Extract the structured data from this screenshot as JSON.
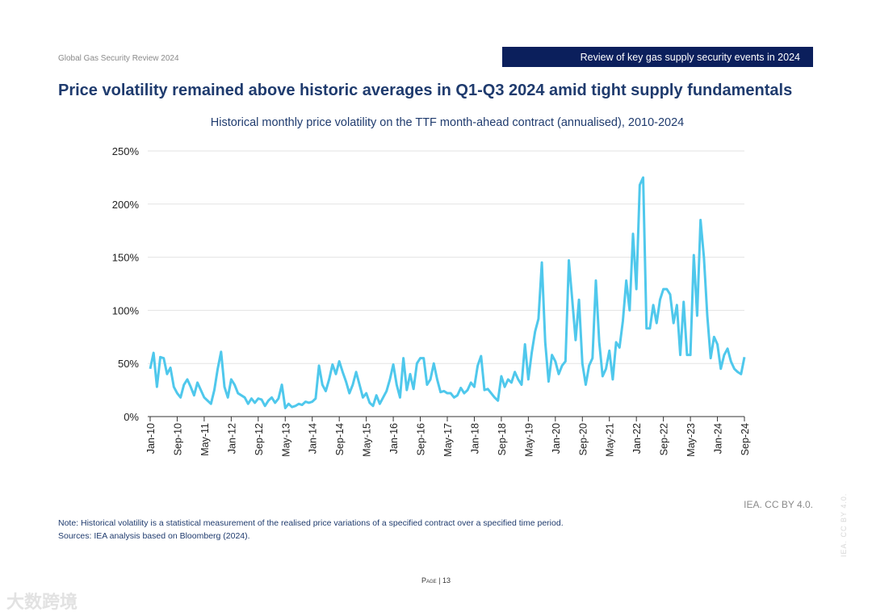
{
  "header": {
    "report": "Global Gas Security Review 2024",
    "section": "Review of key gas supply security events in 2024"
  },
  "title": "Price volatility remained above historic averages in Q1-Q3 2024 amid tight supply fundamentals",
  "credit": "IEA. CC BY 4.0.",
  "note": "Note: Historical volatility is a statistical measurement of the realised price variations of a specified contract over a specified time period.",
  "sources": "Sources: IEA analysis based on Bloomberg (2024).",
  "page": "Page | 13",
  "side_license": "IEA. CC BY 4.0.",
  "watermark": "大数跨境",
  "colors": {
    "line": "#4fc8ec",
    "grid": "#e3e3e3",
    "title": "#1f3b6e",
    "band": "#0b1f5c"
  },
  "chart_data": {
    "type": "line",
    "title": "Historical monthly price volatility on the TTF month-ahead contract (annualised), 2010-2024",
    "xlabel": "",
    "ylabel": "",
    "ylim": [
      0,
      250
    ],
    "yticks": [
      "0%",
      "50%",
      "100%",
      "150%",
      "200%",
      "250%"
    ],
    "ytick_values": [
      0,
      50,
      100,
      150,
      200,
      250
    ],
    "xticks": [
      "Jan-10",
      "Sep-10",
      "May-11",
      "Jan-12",
      "Sep-12",
      "May-13",
      "Jan-14",
      "Sep-14",
      "May-15",
      "Jan-16",
      "Sep-16",
      "May-17",
      "Jan-18",
      "Sep-18",
      "May-19",
      "Jan-20",
      "Sep-20",
      "May-21",
      "Jan-22",
      "Sep-22",
      "May-23",
      "Jan-24",
      "Sep-24"
    ],
    "x_start": "Jan-10",
    "x_end": "Sep-24",
    "frequency": "monthly",
    "grid": true,
    "series": [
      {
        "name": "TTF month-ahead volatility (%)",
        "values": [
          45,
          60,
          28,
          56,
          55,
          40,
          46,
          28,
          22,
          18,
          30,
          35,
          28,
          20,
          32,
          25,
          18,
          15,
          12,
          25,
          45,
          61,
          28,
          18,
          35,
          30,
          22,
          20,
          18,
          12,
          17,
          13,
          17,
          16,
          10,
          15,
          18,
          13,
          17,
          30,
          8,
          12,
          9,
          10,
          12,
          11,
          14,
          13,
          14,
          17,
          48,
          30,
          24,
          35,
          49,
          40,
          52,
          42,
          33,
          22,
          30,
          42,
          30,
          18,
          22,
          13,
          10,
          20,
          12,
          18,
          24,
          35,
          49,
          30,
          18,
          55,
          25,
          40,
          26,
          50,
          55,
          55,
          30,
          35,
          50,
          35,
          23,
          24,
          22,
          22,
          18,
          20,
          27,
          22,
          25,
          32,
          28,
          48,
          57,
          25,
          26,
          22,
          18,
          15,
          38,
          28,
          35,
          32,
          42,
          35,
          30,
          68,
          35,
          60,
          80,
          92,
          145,
          70,
          33,
          58,
          52,
          40,
          48,
          52,
          147,
          110,
          72,
          110,
          50,
          30,
          48,
          55,
          128,
          70,
          38,
          45,
          62,
          35,
          70,
          65,
          90,
          128,
          100,
          172,
          120,
          218,
          225,
          83,
          83,
          105,
          88,
          110,
          120,
          120,
          115,
          88,
          105,
          58,
          108,
          58,
          58,
          152,
          95,
          185,
          150,
          95,
          55,
          75,
          68,
          45,
          58,
          64,
          52,
          45,
          42,
          40,
          56
        ]
      }
    ]
  }
}
